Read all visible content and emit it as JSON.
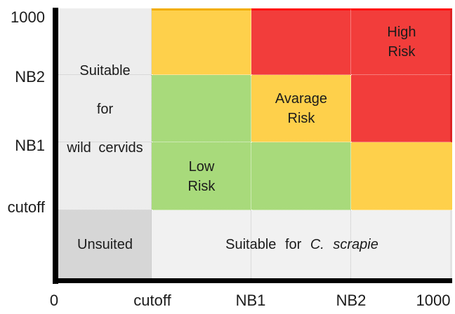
{
  "chart_data": {
    "type": "heatmap",
    "title": "",
    "x_ticks": [
      "0",
      "cutoff",
      "NB1",
      "NB2",
      "1000"
    ],
    "y_ticks": [
      "0",
      "cutoff",
      "NB1",
      "NB2",
      "1000"
    ],
    "axis_ranges": {
      "x": [
        0,
        1000
      ],
      "y": [
        0,
        1000
      ]
    },
    "grid_rows_top_to_bottom": [
      [
        "gray",
        "yellow",
        "red",
        "red"
      ],
      [
        "gray",
        "green",
        "yellow",
        "red"
      ],
      [
        "gray",
        "green",
        "green",
        "yellow"
      ],
      [
        "dgray",
        "fgray",
        "fgray",
        "fgray"
      ]
    ],
    "cell_meanings": {
      "green": "Low Risk",
      "yellow": "Avarage Risk",
      "red": "High Risk",
      "gray": "Suitable for wild cervids",
      "dgray": "Unsuited",
      "fgray": "Suitable for C. scrapie"
    },
    "colors": {
      "yellow": "#FED04B",
      "red": "#F23D3B",
      "green": "#A8DA7B",
      "gray": "#EDEDED",
      "dgray": "#D6D6D6",
      "fgray": "#F1F1F1"
    },
    "grid_lines": "dotted",
    "legend_position": "none"
  },
  "axes": {
    "y_labels": [
      "1000",
      "NB2",
      "NB1",
      "cutoff"
    ],
    "x_labels": [
      "0",
      "cutoff",
      "NB1",
      "NB2",
      "1000"
    ]
  },
  "regions": {
    "wild_cervids": {
      "line1": "Suitable",
      "line2": "for",
      "line3": "wild cervids"
    },
    "low_risk": {
      "line1": "Low",
      "line2": "Risk"
    },
    "avarage_risk": {
      "line1": "Avarage",
      "line2": "Risk"
    },
    "high_risk": {
      "line1": "High",
      "line2": "Risk"
    },
    "unsuited": {
      "label": "Unsuited"
    },
    "scrapie": {
      "prefix": "Suitable for",
      "italic": "C. scrapie"
    }
  }
}
